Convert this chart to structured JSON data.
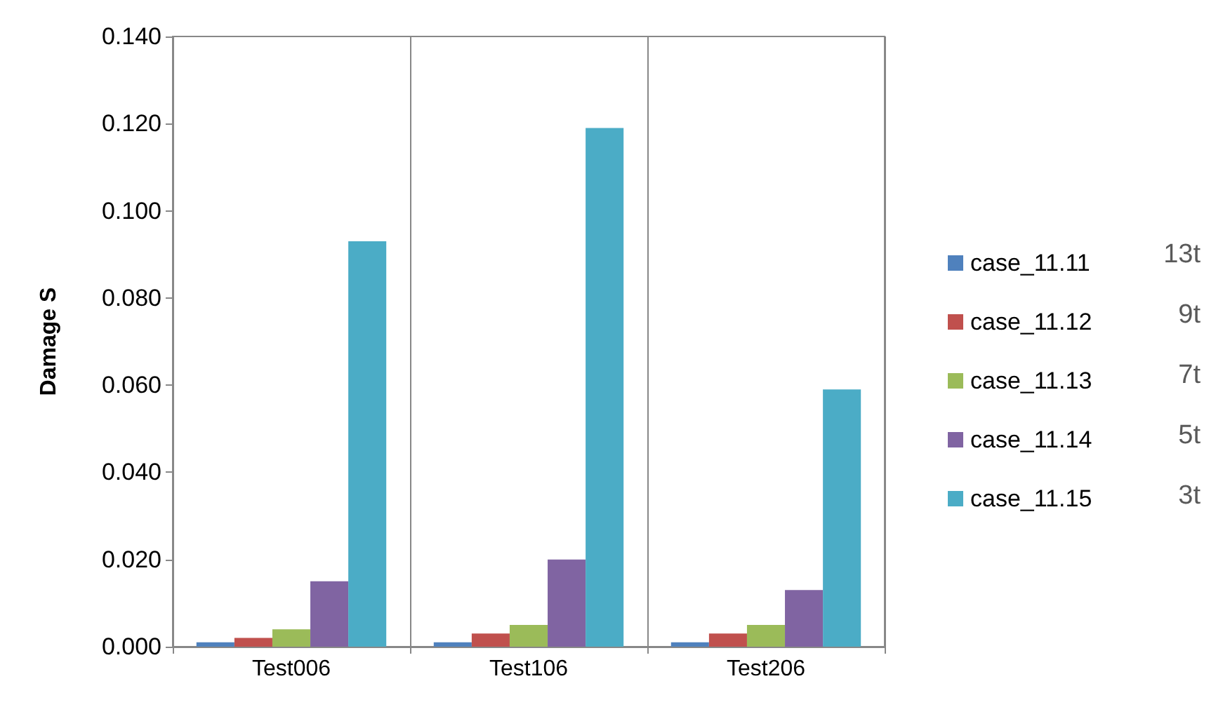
{
  "chart_data": {
    "type": "bar",
    "ylabel": "Damage S",
    "categories": [
      "Test006",
      "Test106",
      "Test206"
    ],
    "series": [
      {
        "name": "case_11.11",
        "color": "#4f81bd",
        "values": [
          0.001,
          0.001,
          0.001
        ]
      },
      {
        "name": "case_11.12",
        "color": "#c0504d",
        "values": [
          0.002,
          0.003,
          0.003
        ]
      },
      {
        "name": "case_11.13",
        "color": "#9bbb59",
        "values": [
          0.004,
          0.005,
          0.005
        ]
      },
      {
        "name": "case_11.14",
        "color": "#8064a2",
        "values": [
          0.015,
          0.02,
          0.013
        ]
      },
      {
        "name": "case_11.15",
        "color": "#4bacc6",
        "values": [
          0.093,
          0.119,
          0.059
        ]
      }
    ],
    "annotations": [
      "13t",
      "9t",
      "7t",
      "5t",
      "3t"
    ],
    "ylim": [
      0,
      0.14
    ],
    "yticks": [
      {
        "value": 0,
        "label": "0.000"
      },
      {
        "value": 0.02,
        "label": "0.020"
      },
      {
        "value": 0.04,
        "label": "0.040"
      },
      {
        "value": 0.06,
        "label": "0.060"
      },
      {
        "value": 0.08,
        "label": "0.080"
      },
      {
        "value": 0.1,
        "label": "0.100"
      },
      {
        "value": 0.12,
        "label": "0.120"
      },
      {
        "value": 0.14,
        "label": "0.140"
      }
    ],
    "grid": "x",
    "legend": "right"
  }
}
